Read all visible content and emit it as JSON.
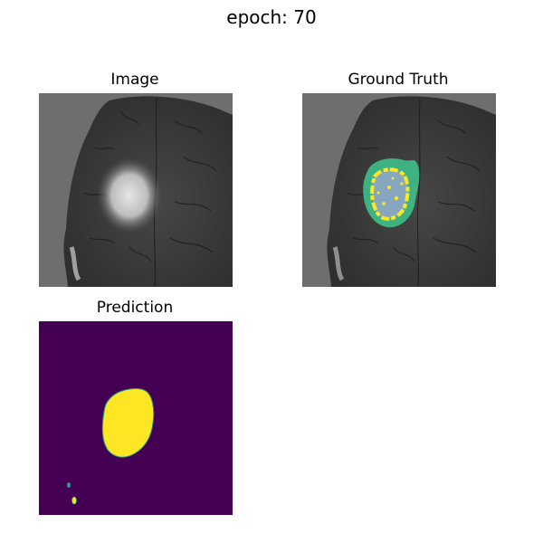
{
  "figure": {
    "title": "epoch: 70"
  },
  "panels": [
    {
      "title": "Image"
    },
    {
      "title": "Ground Truth"
    },
    {
      "title": "Prediction"
    }
  ],
  "colors": {
    "mri_background": "#6e6e6e",
    "tissue_dark": "#2a2a2a",
    "tissue_mid": "#4a4a4a",
    "tumor_bright": "#d8d8d8",
    "gt_edema": "#3fbf8a",
    "gt_core": "#fde725",
    "gt_inner": "#8aa6c0",
    "pred_background": "#440154",
    "pred_foreground": "#fde725",
    "pred_spot": "#2a9d8f"
  }
}
